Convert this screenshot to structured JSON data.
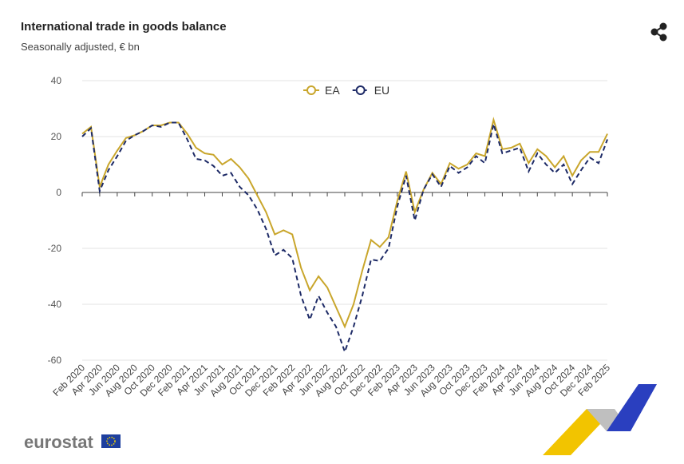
{
  "chart_data": {
    "type": "line",
    "title": "International trade in goods balance",
    "subtitle": "Seasonally adjusted, € bn",
    "logo": "eurostat",
    "categories": [
      "Feb 2020",
      null,
      "Apr 2020",
      null,
      "Jun 2020",
      null,
      "Aug 2020",
      null,
      "Oct 2020",
      null,
      "Dec 2020",
      null,
      "Feb 2021",
      null,
      "Apr 2021",
      null,
      "Jun 2021",
      null,
      "Aug 2021",
      null,
      "Oct 2021",
      null,
      "Dec 2021",
      null,
      "Feb 2022",
      null,
      "Apr 2022",
      null,
      "Jun 2022",
      null,
      "Aug 2022",
      null,
      "Oct 2022",
      null,
      "Dec 2022",
      null,
      "Feb 2023",
      null,
      "Apr 2023",
      null,
      "Jun 2023",
      null,
      "Aug 2023",
      null,
      "Oct 2023",
      null,
      "Dec 2023",
      null,
      "Feb 2024",
      null,
      "Apr 2024",
      null,
      "Jun 2024",
      null,
      "Aug 2024",
      null,
      "Oct 2024",
      null,
      "Dec 2024",
      null,
      "Feb 2025"
    ],
    "series": [
      {
        "name": "EA",
        "color": "#c9a62c",
        "dashed": false,
        "values": [
          21,
          23.5,
          2,
          10,
          15,
          19.5,
          20.5,
          22,
          24,
          24,
          25,
          25,
          21,
          16,
          14,
          13.5,
          10,
          12,
          9,
          5,
          -1,
          -7,
          -15,
          -13.5,
          -15,
          -27,
          -35,
          -30,
          -34,
          -41,
          -48,
          -40,
          -28,
          -17,
          -19.5,
          -16,
          -3,
          7.5,
          -7,
          1,
          7,
          3,
          10.5,
          8.5,
          10,
          14,
          13,
          26,
          15.5,
          16,
          17.5,
          10.5,
          15.5,
          13,
          9,
          13,
          6,
          11.5,
          14.5,
          14.5,
          21
        ]
      },
      {
        "name": "EU",
        "color": "#1d2a66",
        "dashed": true,
        "values": [
          20,
          23,
          0.5,
          8,
          13,
          18.5,
          20.5,
          22,
          24,
          23.5,
          25,
          25,
          19,
          12,
          11.5,
          9.5,
          6,
          7,
          2,
          -1,
          -6,
          -13,
          -22.5,
          -20.5,
          -23.5,
          -37,
          -45.5,
          -37,
          -43,
          -48,
          -57,
          -48,
          -37,
          -24,
          -24.5,
          -20,
          -5,
          6,
          -10,
          1,
          6.5,
          2,
          9.5,
          7,
          9,
          13,
          10.5,
          24.5,
          14,
          15,
          16,
          7.5,
          14,
          10,
          7,
          10,
          3,
          8,
          12.5,
          10.5,
          19
        ]
      }
    ],
    "ylim": [
      -60,
      40
    ],
    "yticks": [
      -60,
      -40,
      -20,
      0,
      20,
      40
    ],
    "grid": true,
    "legend": "top"
  }
}
